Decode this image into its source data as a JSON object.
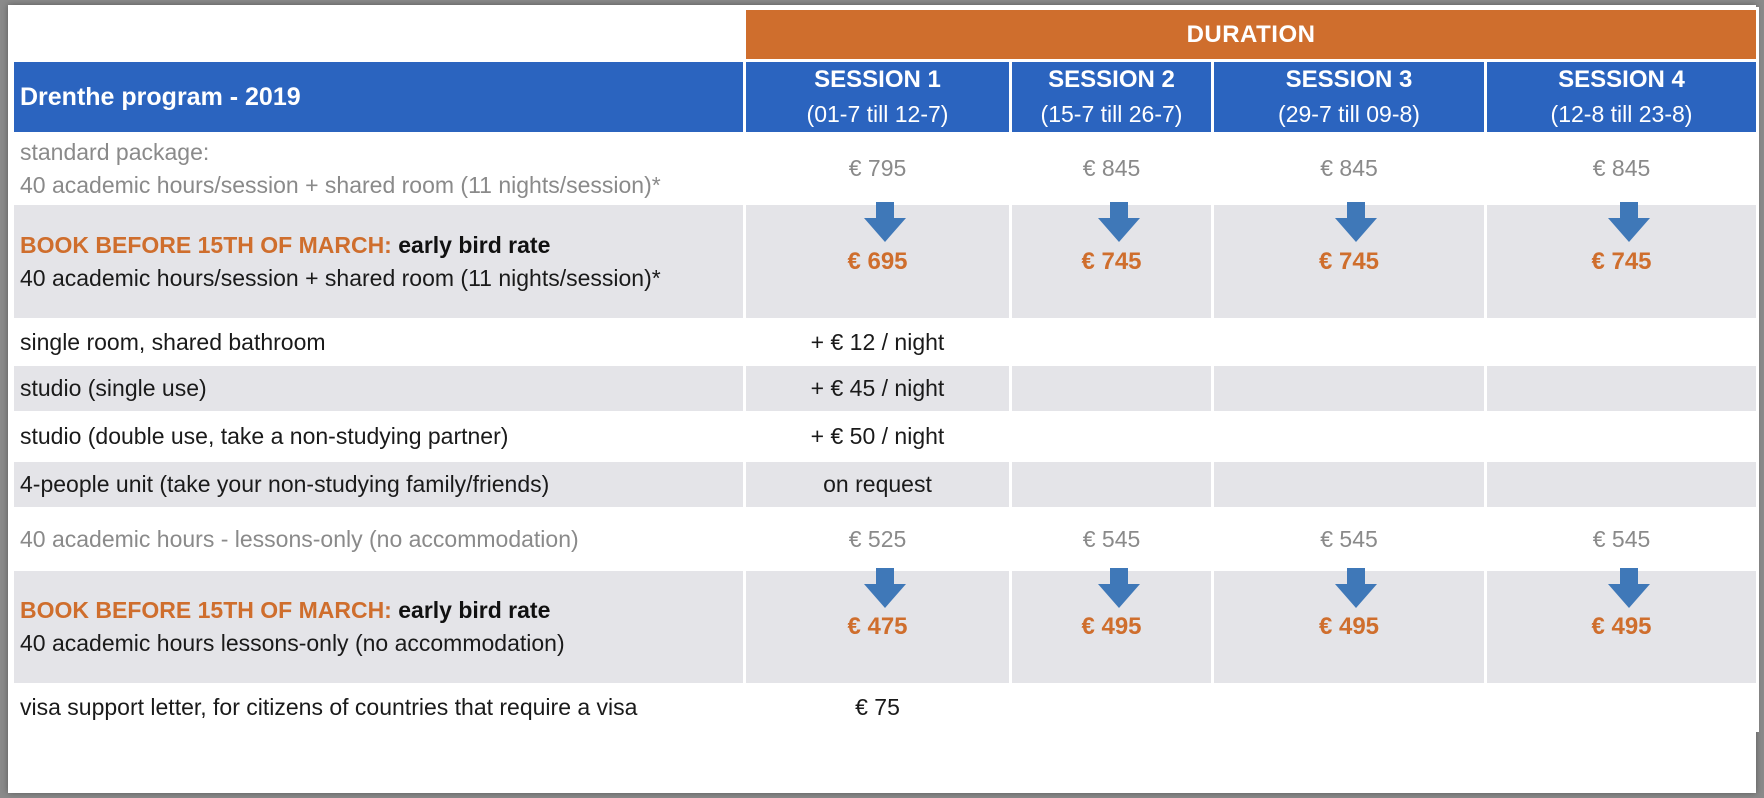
{
  "header": {
    "duration_label": "DURATION",
    "program_title": "Drenthe program - 2019",
    "sessions": [
      {
        "name": "SESSION 1",
        "dates": "(01-7 till 12-7)"
      },
      {
        "name": "SESSION 2",
        "dates": "(15-7 till 26-7)"
      },
      {
        "name": "SESSION 3",
        "dates": "(29-7 till 09-8)"
      },
      {
        "name": "SESSION 4",
        "dates": "(12-8 till 23-8)"
      }
    ]
  },
  "rows": {
    "standard": {
      "line1": "standard package:",
      "line2": "40 academic hours/session + shared room (11 nights/session)*",
      "prices": [
        "€ 795",
        "€ 845",
        "€ 845",
        "€ 845"
      ]
    },
    "early_package": {
      "prefix": "BOOK BEFORE 15TH OF MARCH:",
      "rate": " early bird rate",
      "line2": "40 academic hours/session + shared room (11 nights/session)*",
      "prices": [
        "€ 695",
        "€ 745",
        "€ 745",
        "€ 745"
      ]
    },
    "single_room": {
      "label": "single room, shared bathroom",
      "price": "+ € 12 / night"
    },
    "studio_single": {
      "label": "studio (single use)",
      "price": "+ € 45 / night"
    },
    "studio_double": {
      "label": "studio (double use, take a non-studying partner)",
      "price": "+ € 50 / night"
    },
    "unit4": {
      "label": "4-people unit (take your non-studying family/friends)",
      "price": "on request"
    },
    "lessons": {
      "label": "40 academic hours - lessons-only (no accommodation)",
      "prices": [
        "€ 525",
        "€ 545",
        "€ 545",
        "€ 545"
      ]
    },
    "early_lessons": {
      "prefix": "BOOK BEFORE 15TH OF MARCH:",
      "rate": " early bird rate",
      "line2": "40 academic hours  lessons-only (no accommodation)",
      "prices": [
        "€ 475",
        "€ 495",
        "€ 495",
        "€ 495"
      ]
    },
    "visa": {
      "label": "visa support letter, for citizens of countries that require a visa",
      "price": "€ 75"
    }
  },
  "colors": {
    "header_blue": "#2b64bf",
    "duration_orange": "#cf6e2d",
    "arrow_blue": "#3f78b8",
    "row_grey": "#e4e4e8"
  },
  "icons": {
    "price_drop": "down-arrow-icon"
  }
}
